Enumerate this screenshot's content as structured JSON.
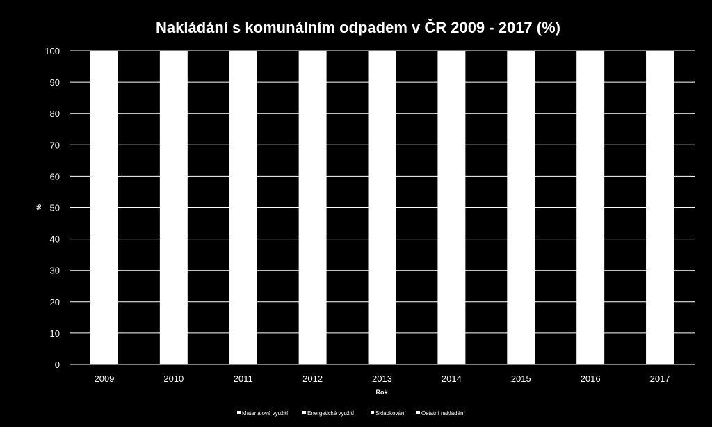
{
  "chart_data": {
    "type": "bar",
    "stacked": true,
    "title": "Nakládání s komunálním odpadem v ČR 2009 - 2017 (%)",
    "xlabel": "Rok",
    "ylabel": "%",
    "ylim": [
      0,
      100
    ],
    "yticks": [
      0,
      10,
      20,
      30,
      40,
      50,
      60,
      70,
      80,
      90,
      100
    ],
    "grid": true,
    "legend_position": "bottom",
    "categories": [
      "2009",
      "2010",
      "2011",
      "2012",
      "2013",
      "2014",
      "2015",
      "2016",
      "2017"
    ],
    "series": [
      {
        "name": "Materiálové využití",
        "values": [
          0,
          0,
          0,
          0,
          0,
          0,
          0,
          0,
          0
        ]
      },
      {
        "name": "Energetické využití",
        "values": [
          0,
          0,
          0,
          0,
          0,
          0,
          0,
          0,
          0
        ]
      },
      {
        "name": "Skládkování",
        "values": [
          0,
          0,
          0,
          0,
          0,
          0,
          0,
          0,
          0
        ]
      },
      {
        "name": "Ostatní nakládání",
        "values": [
          100,
          100,
          100,
          100,
          100,
          100,
          100,
          100,
          100
        ]
      }
    ],
    "colors": {
      "background": "#000000",
      "text": "#ffffff",
      "grid": "#ffffff",
      "bars": "#ffffff"
    }
  }
}
